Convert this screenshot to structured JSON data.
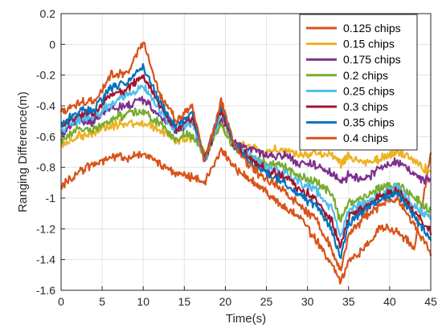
{
  "chart_data": {
    "type": "line",
    "title": "",
    "xlabel": "Time(s)",
    "ylabel": "Ranging Difference(m)",
    "xlim": [
      0,
      45
    ],
    "ylim": [
      -1.6,
      0.2
    ],
    "xticks": [
      0,
      5,
      10,
      15,
      20,
      25,
      30,
      35,
      40,
      45
    ],
    "yticks": [
      -1.6,
      -1.4,
      -1.2,
      -1,
      -0.8,
      -0.6,
      -0.4,
      -0.2,
      0,
      0.2
    ],
    "xtick_labels": [
      "0",
      "5",
      "10",
      "15",
      "20",
      "25",
      "30",
      "35",
      "40",
      "45"
    ],
    "ytick_labels": [
      "-1.6",
      "-1.4",
      "-1.2",
      "-1",
      "-0.8",
      "-0.6",
      "-0.4",
      "-0.2",
      "0",
      "0.2"
    ],
    "grid": true,
    "legend_position": "top-right",
    "series": [
      {
        "name": "0.125 chips",
        "color": "#D95319",
        "x": [
          0,
          2,
          4,
          6,
          8,
          10,
          12,
          14,
          16,
          17.5,
          19.5,
          21,
          23,
          25,
          27,
          29,
          31,
          33,
          34,
          35,
          37,
          39,
          41,
          43,
          45
        ],
        "y": [
          -0.93,
          -0.83,
          -0.78,
          -0.73,
          -0.74,
          -0.71,
          -0.78,
          -0.84,
          -0.86,
          -0.89,
          -0.69,
          -0.8,
          -0.87,
          -0.96,
          -1.06,
          -1.12,
          -1.27,
          -1.44,
          -1.55,
          -1.41,
          -1.33,
          -1.18,
          -1.22,
          -1.32,
          -0.72
        ]
      },
      {
        "name": "0.15 chips",
        "color": "#EDB120",
        "x": [
          0,
          2,
          4,
          6,
          8,
          10,
          12,
          14,
          16,
          17.5,
          19.5,
          21,
          23,
          25,
          27,
          29,
          31,
          33,
          34,
          35,
          37,
          39,
          41,
          43,
          45
        ],
        "y": [
          -0.66,
          -0.6,
          -0.57,
          -0.53,
          -0.51,
          -0.52,
          -0.55,
          -0.63,
          -0.6,
          -0.72,
          -0.52,
          -0.64,
          -0.66,
          -0.7,
          -0.68,
          -0.72,
          -0.7,
          -0.73,
          -0.78,
          -0.72,
          -0.77,
          -0.74,
          -0.7,
          -0.76,
          -0.83
        ]
      },
      {
        "name": "0.175 chips",
        "color": "#7E2F8E",
        "x": [
          0,
          2,
          4,
          6,
          8,
          10,
          12,
          14,
          16,
          17.5,
          19.5,
          21,
          23,
          25,
          27,
          29,
          31,
          33,
          34,
          35,
          37,
          39,
          41,
          43,
          45
        ],
        "y": [
          -0.58,
          -0.5,
          -0.5,
          -0.42,
          -0.4,
          -0.36,
          -0.46,
          -0.56,
          -0.5,
          -0.75,
          -0.48,
          -0.64,
          -0.68,
          -0.72,
          -0.72,
          -0.77,
          -0.79,
          -0.84,
          -0.9,
          -0.85,
          -0.88,
          -0.8,
          -0.76,
          -0.85,
          -0.9
        ]
      },
      {
        "name": "0.2 chips",
        "color": "#77AC30",
        "x": [
          0,
          2,
          4,
          6,
          8,
          10,
          12,
          14,
          16,
          17.5,
          19.5,
          21,
          23,
          25,
          27,
          29,
          31,
          33,
          34,
          35,
          37,
          39,
          41,
          43,
          45
        ],
        "y": [
          -0.63,
          -0.55,
          -0.56,
          -0.49,
          -0.45,
          -0.43,
          -0.52,
          -0.62,
          -0.58,
          -0.72,
          -0.52,
          -0.67,
          -0.73,
          -0.78,
          -0.79,
          -0.86,
          -0.9,
          -0.98,
          -1.15,
          -1.02,
          -1.0,
          -0.93,
          -0.91,
          -1.0,
          -1.08
        ]
      },
      {
        "name": "0.25 chips",
        "color": "#4DBEEE",
        "x": [
          0,
          2,
          4,
          6,
          8,
          10,
          12,
          14,
          16,
          17.5,
          19.5,
          21,
          23,
          25,
          27,
          29,
          31,
          33,
          34,
          35,
          37,
          39,
          41,
          43,
          45
        ],
        "y": [
          -0.56,
          -0.49,
          -0.47,
          -0.39,
          -0.34,
          -0.27,
          -0.43,
          -0.56,
          -0.5,
          -0.76,
          -0.45,
          -0.66,
          -0.73,
          -0.8,
          -0.83,
          -0.9,
          -0.95,
          -1.08,
          -1.25,
          -1.08,
          -1.03,
          -0.98,
          -0.92,
          -1.05,
          -1.14
        ]
      },
      {
        "name": "0.3 chips",
        "color": "#A2142F",
        "x": [
          0,
          2,
          4,
          6,
          8,
          10,
          12,
          14,
          16,
          17.5,
          19.5,
          21,
          23,
          25,
          27,
          29,
          31,
          33,
          34,
          35,
          37,
          39,
          41,
          43,
          45
        ],
        "y": [
          -0.54,
          -0.46,
          -0.45,
          -0.33,
          -0.3,
          -0.2,
          -0.4,
          -0.55,
          -0.47,
          -0.75,
          -0.42,
          -0.65,
          -0.75,
          -0.82,
          -0.86,
          -0.94,
          -1.0,
          -1.16,
          -1.32,
          -1.12,
          -1.06,
          -0.99,
          -0.95,
          -1.09,
          -1.22
        ]
      },
      {
        "name": "0.35 chips",
        "color": "#0072BD",
        "x": [
          0,
          2,
          4,
          6,
          8,
          10,
          12,
          14,
          16,
          17.5,
          19.5,
          21,
          23,
          25,
          27,
          29,
          31,
          33,
          34,
          35,
          37,
          39,
          41,
          43,
          45
        ],
        "y": [
          -0.53,
          -0.44,
          -0.43,
          -0.28,
          -0.26,
          -0.14,
          -0.38,
          -0.54,
          -0.45,
          -0.75,
          -0.4,
          -0.65,
          -0.77,
          -0.84,
          -0.89,
          -0.98,
          -1.05,
          -1.22,
          -1.38,
          -1.17,
          -1.08,
          -1.0,
          -0.97,
          -1.12,
          -1.28
        ]
      },
      {
        "name": "0.4 chips",
        "color": "#D95319",
        "x": [
          0,
          2,
          4,
          6,
          8,
          10,
          12,
          14,
          16,
          17.5,
          19.5,
          21,
          23,
          25,
          27,
          29,
          31,
          33,
          34,
          35,
          37,
          39,
          41,
          43,
          45
        ],
        "y": [
          -0.45,
          -0.38,
          -0.37,
          -0.2,
          -0.18,
          0.01,
          -0.32,
          -0.5,
          -0.4,
          -0.77,
          -0.36,
          -0.65,
          -0.8,
          -0.88,
          -0.94,
          -1.05,
          -1.14,
          -1.33,
          -1.48,
          -1.24,
          -1.12,
          -1.04,
          -1.01,
          -1.18,
          -1.36
        ]
      }
    ]
  }
}
